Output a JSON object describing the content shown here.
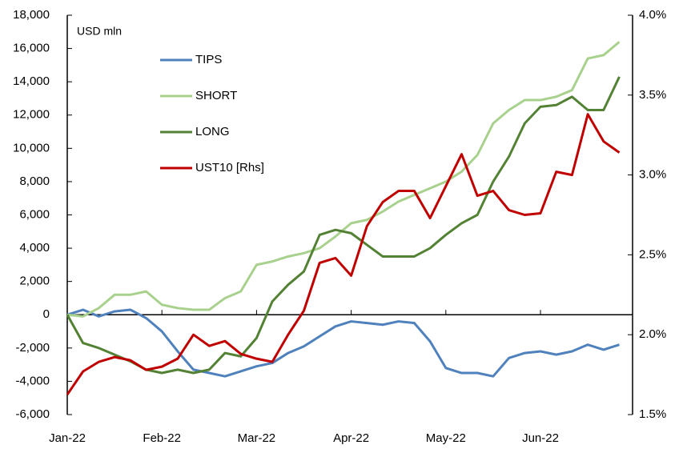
{
  "chart_data": {
    "type": "line",
    "annotations": [
      "USD mln"
    ],
    "categories": [
      "Jan-22",
      null,
      null,
      null,
      null,
      null,
      "Feb-22",
      null,
      null,
      null,
      null,
      null,
      "Mar-22",
      null,
      null,
      null,
      null,
      null,
      "Apr-22",
      null,
      null,
      null,
      null,
      null,
      "May-22",
      null,
      null,
      null,
      null,
      null,
      "Jun-22",
      null,
      null,
      null,
      null,
      null
    ],
    "series": [
      {
        "name": "TIPS",
        "color": "#4f81bd",
        "values": [
          0,
          300,
          -100,
          200,
          300,
          -200,
          -1000,
          -2200,
          -3300,
          -3500,
          -3700,
          -3400,
          -3100,
          -2900,
          -2300,
          -1900,
          -1300,
          -700,
          -400,
          -500,
          -600,
          -400,
          -500,
          -1600,
          -3200,
          -3500,
          -3500,
          -3700,
          -2600,
          -2300,
          -2200,
          -2400,
          -2200,
          -1800,
          -2100,
          -1800
        ]
      },
      {
        "name": "SHORT",
        "color": "#a9d18e",
        "values": [
          0,
          -100,
          400,
          1200,
          1200,
          1400,
          600,
          400,
          300,
          300,
          1000,
          1400,
          3000,
          3200,
          3500,
          3700,
          4000,
          4700,
          5500,
          5700,
          6200,
          6800,
          7200,
          7600,
          8000,
          8600,
          9600,
          11500,
          12300,
          12900,
          12900,
          13100,
          13500,
          15400,
          15600,
          16400
        ]
      },
      {
        "name": "LONG",
        "color": "#548235",
        "values": [
          0,
          -1700,
          -2000,
          -2400,
          -2800,
          -3300,
          -3500,
          -3300,
          -3500,
          -3300,
          -2300,
          -2500,
          -1400,
          800,
          1800,
          2600,
          4800,
          5100,
          4900,
          4200,
          3500,
          3500,
          3500,
          4000,
          4800,
          5500,
          6000,
          8000,
          9500,
          11500,
          12500,
          12600,
          13100,
          12300,
          12300,
          14300
        ]
      },
      {
        "name": "UST10 [Rhs]",
        "color": "#c00000",
        "axis": "y2",
        "values": [
          1.625,
          1.77,
          1.83,
          1.86,
          1.84,
          1.78,
          1.8,
          1.85,
          2.0,
          1.93,
          1.96,
          1.88,
          1.85,
          1.83,
          2.0,
          2.15,
          2.45,
          2.48,
          2.37,
          2.68,
          2.83,
          2.9,
          2.9,
          2.73,
          2.93,
          3.13,
          2.87,
          2.9,
          2.78,
          2.75,
          2.76,
          3.02,
          3.0,
          3.38,
          3.21,
          3.14
        ]
      }
    ],
    "ylim": [
      -6000,
      18000
    ],
    "yticks": [
      {
        "value": -6000,
        "label": "-6,000"
      },
      {
        "value": -4000,
        "label": "-4,000"
      },
      {
        "value": -2000,
        "label": "-2,000"
      },
      0,
      {
        "value": 2000,
        "label": "2,000"
      },
      {
        "value": 4000,
        "label": "4,000"
      },
      {
        "value": 6000,
        "label": "6,000"
      },
      {
        "value": 8000,
        "label": "8,000"
      },
      {
        "value": 10000,
        "label": "10,000"
      },
      {
        "value": 12000,
        "label": "12,000"
      },
      {
        "value": 14000,
        "label": "14,000"
      },
      {
        "value": 16000,
        "label": "16,000"
      },
      {
        "value": 18000,
        "label": "18,000"
      }
    ],
    "y2lim": [
      1.5,
      4.0
    ],
    "y2ticks": [
      {
        "value": 1.5,
        "label": "1.5%"
      },
      {
        "value": 2.0,
        "label": "2.0%"
      },
      {
        "value": 2.5,
        "label": "2.5%"
      },
      {
        "value": 3.0,
        "label": "3.0%"
      },
      {
        "value": 3.5,
        "label": "3.5%"
      },
      {
        "value": 4.0,
        "label": "4.0%"
      }
    ],
    "grid": false,
    "legend": "upper left"
  }
}
